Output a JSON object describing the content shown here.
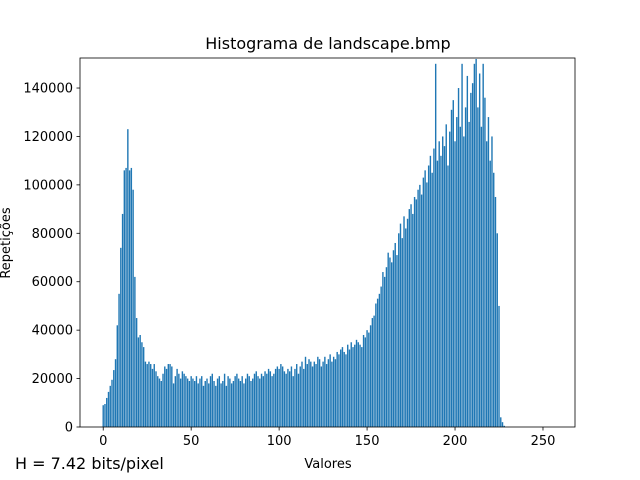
{
  "chart_data": {
    "type": "bar",
    "title": "Histograma de landscape.bmp",
    "xlabel": "Valores",
    "ylabel": "Repetições",
    "annotation": "H = 7.42 bits/pixel",
    "color": "#1f77b4",
    "x": [
      0,
      1,
      2,
      3,
      4,
      5,
      6,
      7,
      8,
      9,
      10,
      11,
      12,
      13,
      14,
      15,
      16,
      17,
      18,
      19,
      20,
      21,
      22,
      23,
      24,
      25,
      26,
      27,
      28,
      29,
      30,
      31,
      32,
      33,
      34,
      35,
      36,
      37,
      38,
      39,
      40,
      41,
      42,
      43,
      44,
      45,
      46,
      47,
      48,
      49,
      50,
      51,
      52,
      53,
      54,
      55,
      56,
      57,
      58,
      59,
      60,
      61,
      62,
      63,
      64,
      65,
      66,
      67,
      68,
      69,
      70,
      71,
      72,
      73,
      74,
      75,
      76,
      77,
      78,
      79,
      80,
      81,
      82,
      83,
      84,
      85,
      86,
      87,
      88,
      89,
      90,
      91,
      92,
      93,
      94,
      95,
      96,
      97,
      98,
      99,
      100,
      101,
      102,
      103,
      104,
      105,
      106,
      107,
      108,
      109,
      110,
      111,
      112,
      113,
      114,
      115,
      116,
      117,
      118,
      119,
      120,
      121,
      122,
      123,
      124,
      125,
      126,
      127,
      128,
      129,
      130,
      131,
      132,
      133,
      134,
      135,
      136,
      137,
      138,
      139,
      140,
      141,
      142,
      143,
      144,
      145,
      146,
      147,
      148,
      149,
      150,
      151,
      152,
      153,
      154,
      155,
      156,
      157,
      158,
      159,
      160,
      161,
      162,
      163,
      164,
      165,
      166,
      167,
      168,
      169,
      170,
      171,
      172,
      173,
      174,
      175,
      176,
      177,
      178,
      179,
      180,
      181,
      182,
      183,
      184,
      185,
      186,
      187,
      188,
      189,
      190,
      191,
      192,
      193,
      194,
      195,
      196,
      197,
      198,
      199,
      200,
      201,
      202,
      203,
      204,
      205,
      206,
      207,
      208,
      209,
      210,
      211,
      212,
      213,
      214,
      215,
      216,
      217,
      218,
      219,
      220,
      221,
      222,
      223,
      224,
      225,
      226,
      227,
      228,
      229,
      230,
      231,
      232,
      233,
      234,
      235,
      236,
      237,
      238,
      239,
      240,
      241,
      242,
      243,
      244,
      245,
      246,
      247,
      248,
      249,
      250,
      251,
      252,
      253,
      254,
      255
    ],
    "values": [
      9000,
      9500,
      12000,
      14500,
      17000,
      19500,
      23500,
      28000,
      42000,
      55000,
      74000,
      88000,
      106000,
      107000,
      123000,
      106000,
      107000,
      98000,
      62000,
      45000,
      37000,
      38000,
      35000,
      33000,
      27000,
      26000,
      27000,
      26000,
      24000,
      26000,
      23000,
      21000,
      20000,
      19000,
      22000,
      25000,
      24000,
      26000,
      26000,
      25000,
      18000,
      21000,
      24000,
      22000,
      20000,
      23000,
      22000,
      21000,
      20000,
      19000,
      21000,
      20000,
      19000,
      21000,
      18000,
      20000,
      21000,
      17000,
      19000,
      20000,
      18000,
      21000,
      22000,
      19000,
      17000,
      20000,
      21000,
      18000,
      19000,
      22000,
      17000,
      21000,
      20000,
      18000,
      19000,
      21000,
      22000,
      20000,
      19000,
      21000,
      18000,
      20000,
      22000,
      21000,
      19000,
      20000,
      22000,
      23000,
      21000,
      20000,
      22000,
      21000,
      23000,
      22000,
      24000,
      23000,
      21000,
      22000,
      24000,
      25000,
      24000,
      26000,
      25000,
      23000,
      22000,
      24000,
      23000,
      25000,
      21000,
      24000,
      26000,
      22000,
      25000,
      27000,
      24000,
      29000,
      26000,
      28000,
      27000,
      25000,
      27000,
      26000,
      29000,
      28000,
      25000,
      27000,
      29000,
      26000,
      28000,
      30000,
      27000,
      29000,
      28000,
      31000,
      30000,
      32000,
      33000,
      31000,
      30000,
      34000,
      32000,
      35000,
      33000,
      34000,
      36000,
      35000,
      34000,
      33000,
      38000,
      37000,
      40000,
      39000,
      42000,
      45000,
      46000,
      51000,
      53000,
      55000,
      58000,
      64000,
      62000,
      66000,
      72000,
      70000,
      68000,
      73000,
      76000,
      71000,
      80000,
      84000,
      78000,
      87000,
      82000,
      86000,
      90000,
      92000,
      88000,
      95000,
      94000,
      98000,
      100000,
      96000,
      103000,
      106000,
      101000,
      108000,
      112000,
      105000,
      115000,
      150000,
      110000,
      118000,
      112000,
      120000,
      116000,
      125000,
      108000,
      122000,
      131000,
      135000,
      118000,
      128000,
      140000,
      124000,
      150000,
      120000,
      132000,
      145000,
      126000,
      138000,
      142000,
      150000,
      152000,
      132000,
      146000,
      124000,
      150000,
      136000,
      118000,
      128000,
      110000,
      120000,
      105000,
      95000,
      80000,
      50000,
      4000,
      2000,
      500,
      0,
      0,
      0,
      0,
      0,
      0,
      0,
      0,
      0,
      0,
      0,
      0,
      0,
      0,
      0,
      0,
      0,
      0,
      0,
      0,
      0,
      0,
      0,
      0,
      0,
      0,
      0
    ],
    "xlim": [
      -13.2,
      268.2
    ],
    "xticks": [
      0,
      50,
      100,
      150,
      200,
      250
    ],
    "ylim": [
      0,
      152400
    ],
    "yticks": [
      0,
      20000,
      40000,
      60000,
      80000,
      100000,
      120000,
      140000
    ]
  }
}
